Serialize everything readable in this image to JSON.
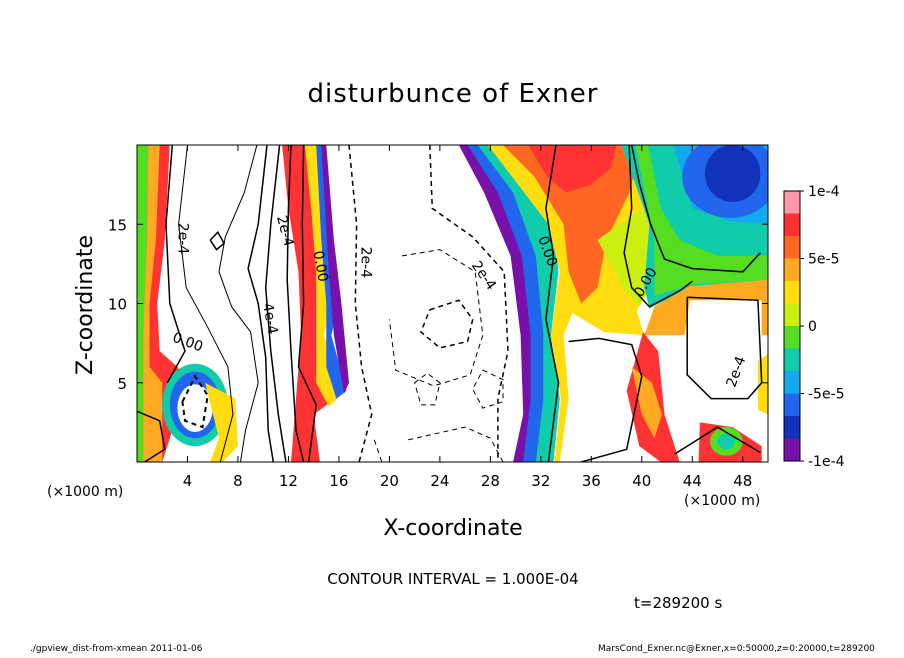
{
  "chart_data": {
    "type": "heatmap",
    "title": "disturbunce of Exner",
    "xlabel": "X-coordinate",
    "ylabel": "Z-coordinate",
    "x_unit": "(×1000 m)",
    "z_unit": "(×1000 m)",
    "xlim": [
      0,
      50
    ],
    "ylim": [
      0,
      20
    ],
    "x_ticks": [
      4,
      8,
      12,
      16,
      20,
      24,
      28,
      32,
      36,
      40,
      44,
      48
    ],
    "y_ticks": [
      5,
      10,
      15
    ],
    "colorbar": {
      "min": -0.0001,
      "max": 0.0001,
      "tick_labels": [
        "1e-4",
        "5e-5",
        "0",
        "-5e-5",
        "-1e-4"
      ],
      "tick_values": [
        0.0001,
        5e-05,
        0,
        -5e-05,
        -0.0001
      ],
      "colors": [
        "#ff9aa8",
        "#ff3333",
        "#ff6622",
        "#ffaa22",
        "#ffdd11",
        "#ccee11",
        "#55dd22",
        "#11ccaa",
        "#11aaee",
        "#2266ee",
        "#1133bb",
        "#7711aa"
      ]
    },
    "contour_labels": [
      "2e-4",
      "2e-4",
      "0.00",
      "2e-4",
      "2e-4",
      "0.00",
      "0.00",
      "4e-4",
      "0.00",
      "2e-4"
    ],
    "contour_interval_text": "CONTOUR INTERVAL = 1.000E-04",
    "time_text": "t=289200 s",
    "grid": false
  },
  "footer": {
    "left": "./gpview_dist-from-xmean  2011-01-06",
    "right": "MarsCond_Exner.nc@Exner,x=0:50000,z=0:20000,t=289200"
  }
}
